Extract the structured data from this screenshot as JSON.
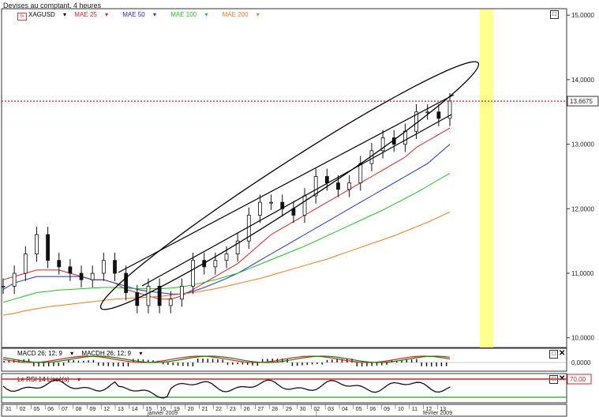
{
  "window": {
    "title": "Devises au comptant, 4 heures"
  },
  "legend": {
    "symbol": "XAGUSD",
    "symbol_icon": "fx-icon",
    "items": [
      {
        "label": "MAE 25",
        "color": "#e02020"
      },
      {
        "label": "MAE 50",
        "color": "#1f2fd0"
      },
      {
        "label": "MAE 100",
        "color": "#20c020"
      },
      {
        "label": "MAE 200",
        "color": "#f07a20"
      }
    ]
  },
  "price_panel": {
    "last_price": "13,6675",
    "y_ticks": [
      "15,0000",
      "14,0000",
      "13,0000",
      "12,0000",
      "11,0000",
      "10,0000"
    ],
    "highlight_color": "#ffff80"
  },
  "macd_panel": {
    "legend_1": "MACD 26; 12; 9",
    "legend_2": "MACDH 26; 12; 9",
    "y_ticks": [
      "0,0000"
    ]
  },
  "rsi_panel": {
    "legend": "Le RSI 14 Lissé(s)",
    "level_label": "70,00"
  },
  "x_axis": {
    "days": [
      "31",
      "02",
      "05",
      "06",
      "07",
      "08",
      "09",
      "12",
      "13",
      "14",
      "15",
      "16",
      "19",
      "20",
      "21",
      "22",
      "23",
      "26",
      "27",
      "28",
      "29",
      "30",
      "02",
      "03",
      "04",
      "05",
      "06",
      "09",
      "10",
      "11",
      "12",
      "13"
    ],
    "months": [
      "janvier 2009",
      "février 2009"
    ]
  },
  "chart_data": {
    "type": "line",
    "title": "",
    "ylim": [
      9.85,
      15.1
    ],
    "series": [
      {
        "name": "XAGUSD",
        "values": [
          10.8,
          11.0,
          11.3,
          11.6,
          11.2,
          11.1,
          11.0,
          10.9,
          11.0,
          11.2,
          11.0,
          10.7,
          10.5,
          10.8,
          10.5,
          10.6,
          10.8,
          11.2,
          11.1,
          11.2,
          11.3,
          11.5,
          11.9,
          12.1,
          12.1,
          12.0,
          11.9,
          12.2,
          12.5,
          12.4,
          12.3,
          12.4,
          12.7,
          12.9,
          13.1,
          13.0,
          13.2,
          13.5,
          13.5,
          13.4,
          13.67
        ]
      },
      {
        "name": "MAE 25",
        "values": [
          10.9,
          10.95,
          11.0,
          11.05,
          11.05,
          11.05,
          11.0,
          10.95,
          10.9,
          10.9,
          10.85,
          10.75,
          10.7,
          10.65,
          10.6,
          10.6,
          10.65,
          10.75,
          10.85,
          10.95,
          11.05,
          11.15,
          11.3,
          11.45,
          11.6,
          11.7,
          11.8,
          11.9,
          12.0,
          12.1,
          12.2,
          12.3,
          12.4,
          12.5,
          12.6,
          12.7,
          12.8,
          12.95,
          13.05,
          13.15,
          13.25
        ]
      },
      {
        "name": "MAE 50",
        "values": [
          10.75,
          10.85,
          10.9,
          10.95,
          10.95,
          10.95,
          10.95,
          10.95,
          10.9,
          10.9,
          10.85,
          10.8,
          10.75,
          10.72,
          10.7,
          10.68,
          10.68,
          10.72,
          10.78,
          10.85,
          10.92,
          11.0,
          11.1,
          11.2,
          11.3,
          11.4,
          11.5,
          11.6,
          11.7,
          11.8,
          11.9,
          12.0,
          12.1,
          12.2,
          12.3,
          12.4,
          12.5,
          12.6,
          12.7,
          12.85,
          13.0
        ]
      },
      {
        "name": "MAE 100",
        "values": [
          10.55,
          10.6,
          10.65,
          10.7,
          10.72,
          10.74,
          10.75,
          10.76,
          10.77,
          10.78,
          10.78,
          10.77,
          10.76,
          10.76,
          10.76,
          10.77,
          10.79,
          10.82,
          10.86,
          10.9,
          10.95,
          11.0,
          11.07,
          11.14,
          11.21,
          11.28,
          11.35,
          11.42,
          11.5,
          11.58,
          11.66,
          11.74,
          11.82,
          11.9,
          11.98,
          12.07,
          12.16,
          12.25,
          12.35,
          12.45,
          12.55
        ]
      },
      {
        "name": "MAE 200",
        "values": [
          10.35,
          10.38,
          10.42,
          10.45,
          10.48,
          10.5,
          10.52,
          10.54,
          10.56,
          10.58,
          10.6,
          10.61,
          10.62,
          10.63,
          10.64,
          10.66,
          10.68,
          10.7,
          10.73,
          10.76,
          10.8,
          10.84,
          10.88,
          10.92,
          10.97,
          11.02,
          11.07,
          11.12,
          11.17,
          11.22,
          11.28,
          11.34,
          11.4,
          11.46,
          11.52,
          11.58,
          11.65,
          11.72,
          11.79,
          11.87,
          11.95
        ]
      }
    ]
  }
}
